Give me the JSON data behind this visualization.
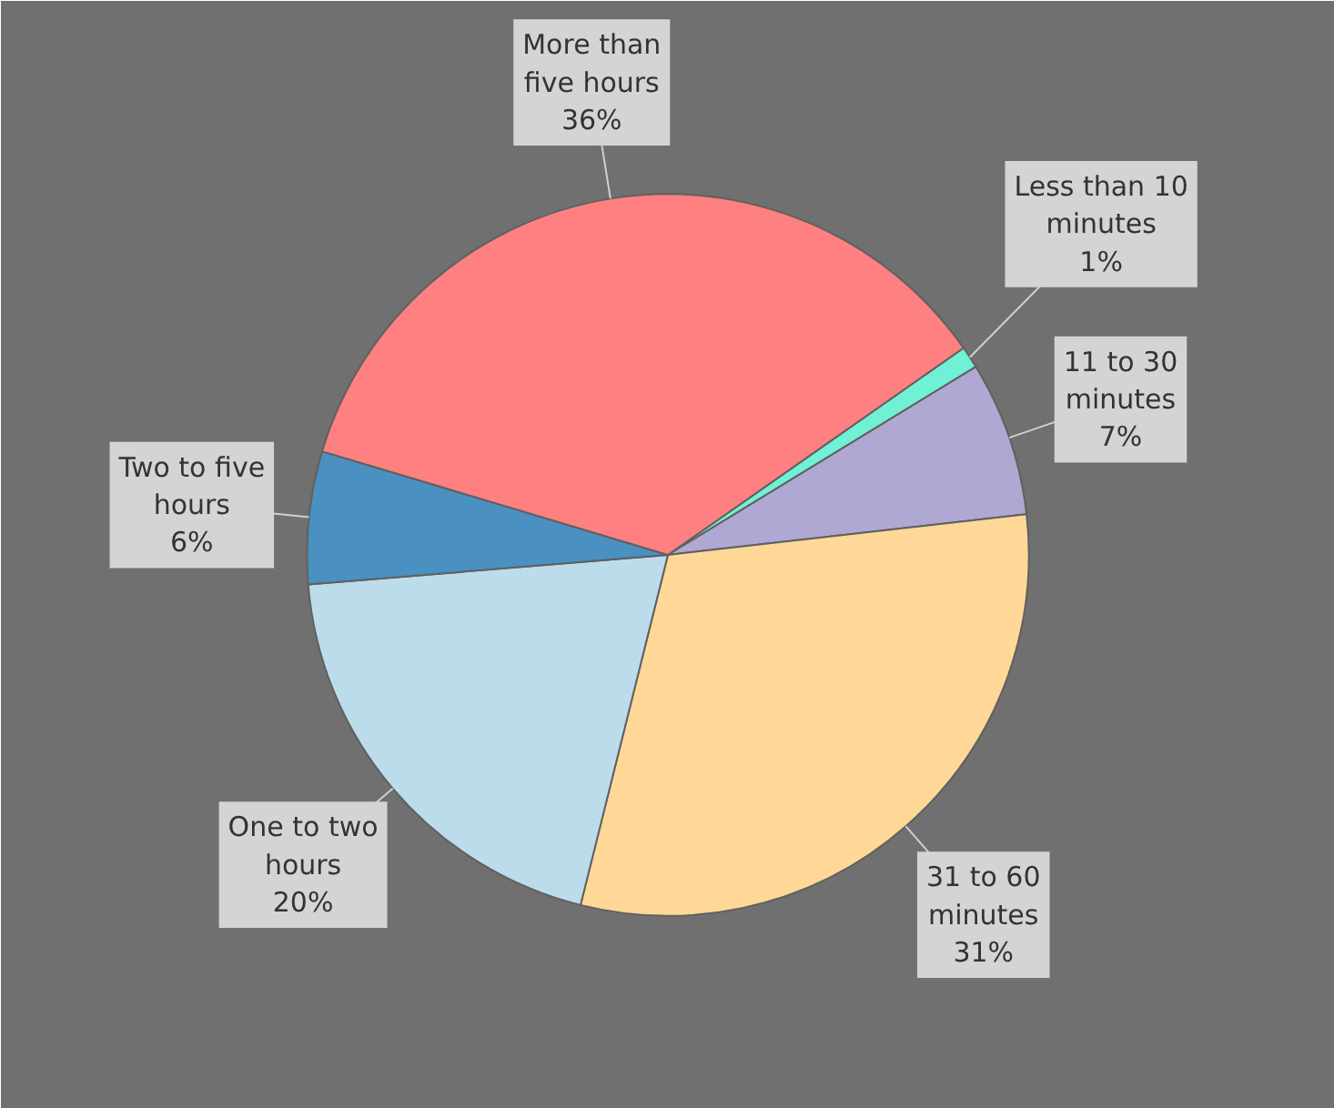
{
  "chart_data": {
    "type": "pie",
    "categories": [
      "Less than 10 minutes",
      "11 to 30 minutes",
      "31 to 60 minutes",
      "One to two hours",
      "Two to five hours",
      "More than five hours"
    ],
    "values": [
      1,
      7,
      31,
      20,
      6,
      36
    ],
    "value_labels": [
      "1%",
      "7%",
      "31%",
      "20%",
      "6%",
      "36%"
    ],
    "colors": [
      "#70f0d4",
      "#aea8d2",
      "#ffd898",
      "#bcdcec",
      "#4a90c0",
      "#ff8080"
    ]
  }
}
